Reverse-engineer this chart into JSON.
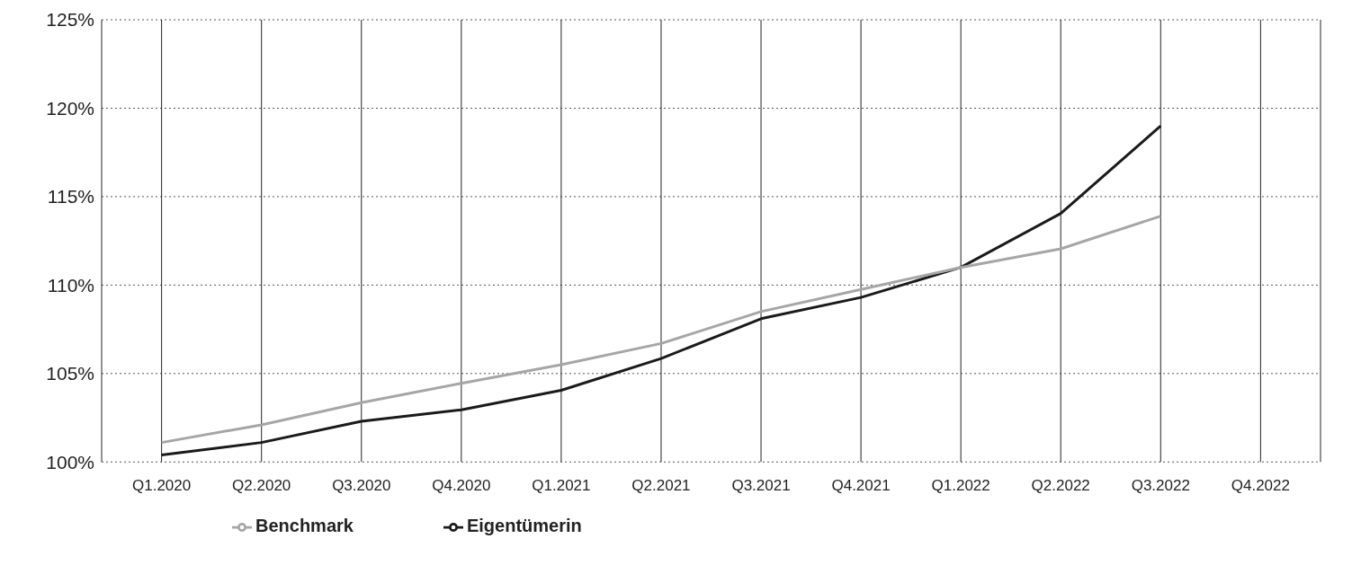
{
  "chart_data": {
    "type": "line",
    "categories": [
      "Q1.2020",
      "Q2.2020",
      "Q3.2020",
      "Q4.2020",
      "Q1.2021",
      "Q2.2021",
      "Q3.2021",
      "Q4.2021",
      "Q1.2022",
      "Q2.2022",
      "Q3.2022",
      "Q4.2022"
    ],
    "ylim": [
      100,
      125
    ],
    "yticks": [
      {
        "value": 100,
        "label": "100%"
      },
      {
        "value": 105,
        "label": "105%"
      },
      {
        "value": 110,
        "label": "110%"
      },
      {
        "value": 115,
        "label": "115%"
      },
      {
        "value": 120,
        "label": "120%"
      },
      {
        "value": 125,
        "label": "125%"
      }
    ],
    "grid": true,
    "legend": "bottom left",
    "marker": "none",
    "line_style": "solid",
    "series": [
      {
        "name": "Eigentümerin",
        "color": "#1a1a1a",
        "values": [
          100.4,
          101.1,
          102.3,
          102.95,
          104.05,
          105.85,
          108.1,
          109.3,
          111.0,
          114.05,
          119.0,
          null
        ]
      },
      {
        "name": "Benchmark",
        "color": "#a6a6a6",
        "values": [
          101.1,
          102.1,
          103.35,
          104.45,
          105.5,
          106.7,
          108.5,
          109.75,
          111.0,
          112.05,
          113.9,
          null
        ]
      }
    ]
  }
}
